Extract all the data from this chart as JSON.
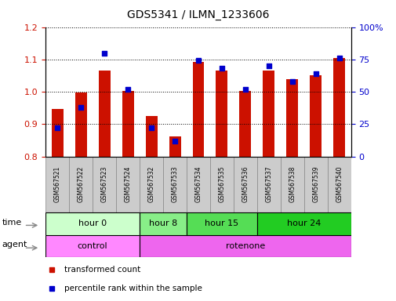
{
  "title": "GDS5341 / ILMN_1233606",
  "samples": [
    "GSM567521",
    "GSM567522",
    "GSM567523",
    "GSM567524",
    "GSM567532",
    "GSM567533",
    "GSM567534",
    "GSM567535",
    "GSM567536",
    "GSM567537",
    "GSM567538",
    "GSM567539",
    "GSM567540"
  ],
  "transformed_count": [
    0.948,
    0.997,
    1.065,
    1.002,
    0.924,
    0.862,
    1.093,
    1.065,
    1.003,
    1.065,
    1.038,
    1.05,
    1.105
  ],
  "percentile_rank": [
    22,
    38,
    80,
    52,
    22,
    12,
    74,
    68,
    52,
    70,
    58,
    64,
    76
  ],
  "ylim_left": [
    0.8,
    1.2
  ],
  "ylim_right": [
    0,
    100
  ],
  "yticks_left": [
    0.8,
    0.9,
    1.0,
    1.1,
    1.2
  ],
  "yticks_right": [
    0,
    25,
    50,
    75,
    100
  ],
  "yticklabels_right": [
    "0",
    "25",
    "50",
    "75",
    "100%"
  ],
  "bar_color": "#cc1100",
  "dot_color": "#0000cc",
  "bar_bottom": 0.8,
  "time_groups": [
    {
      "label": "hour 0",
      "start": 0,
      "end": 4,
      "color": "#ccffcc"
    },
    {
      "label": "hour 8",
      "start": 4,
      "end": 6,
      "color": "#88ee88"
    },
    {
      "label": "hour 15",
      "start": 6,
      "end": 9,
      "color": "#55dd55"
    },
    {
      "label": "hour 24",
      "start": 9,
      "end": 13,
      "color": "#22cc22"
    }
  ],
  "agent_groups": [
    {
      "label": "control",
      "start": 0,
      "end": 4,
      "color": "#ff88ff"
    },
    {
      "label": "rotenone",
      "start": 4,
      "end": 13,
      "color": "#ee66ee"
    }
  ],
  "legend_items": [
    {
      "label": "transformed count",
      "color": "#cc1100"
    },
    {
      "label": "percentile rank within the sample",
      "color": "#0000cc"
    }
  ],
  "xlabel_time": "time",
  "xlabel_agent": "agent",
  "tick_label_color_left": "#cc1100",
  "tick_label_color_right": "#0000cc",
  "bg_color": "#ffffff",
  "sample_box_color": "#cccccc"
}
